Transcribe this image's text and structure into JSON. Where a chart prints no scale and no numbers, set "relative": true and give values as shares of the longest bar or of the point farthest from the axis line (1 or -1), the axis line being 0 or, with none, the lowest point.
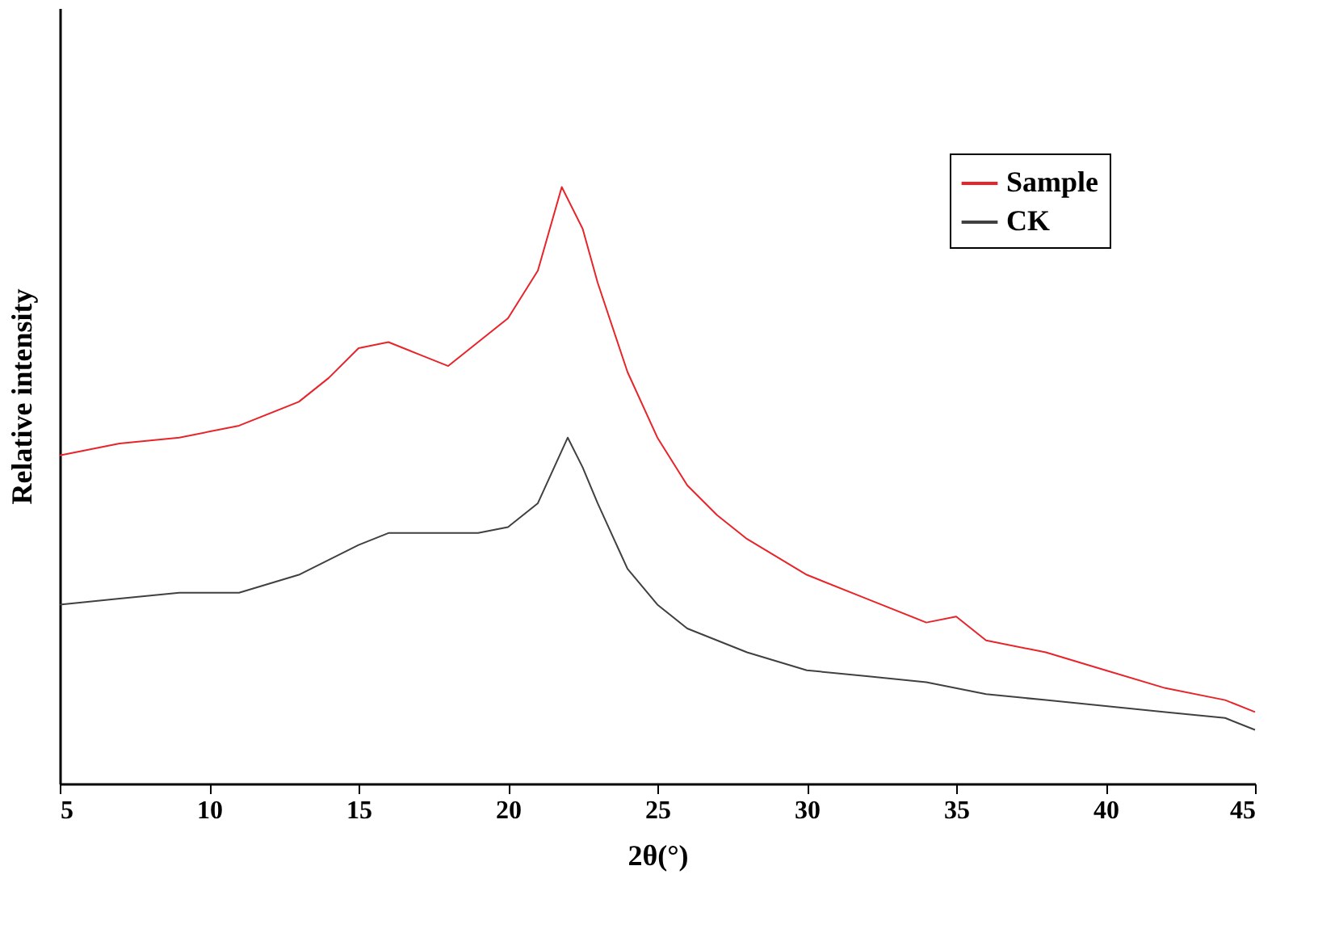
{
  "chart_data": {
    "type": "line",
    "relative": true,
    "xlabel": "2θ(°)",
    "ylabel": "Relative intensity",
    "xlim": [
      5,
      45
    ],
    "xticks": [
      5,
      10,
      15,
      20,
      25,
      30,
      35,
      40,
      45
    ],
    "grid": false,
    "legend": "top right",
    "line_style": "solid",
    "marker": "none",
    "series": [
      {
        "name": "Sample",
        "color": "#e8242a",
        "x": [
          5,
          7,
          9,
          11,
          13,
          14,
          15,
          16,
          17,
          18,
          19,
          20,
          21,
          21.8,
          22.5,
          23,
          24,
          25,
          26,
          27,
          28,
          30,
          32,
          34,
          35,
          36,
          38,
          40,
          42,
          44,
          45
        ],
        "values": [
          0.55,
          0.57,
          0.58,
          0.6,
          0.64,
          0.68,
          0.73,
          0.74,
          0.72,
          0.7,
          0.74,
          0.78,
          0.86,
          1,
          0.93,
          0.84,
          0.69,
          0.58,
          0.5,
          0.45,
          0.41,
          0.35,
          0.31,
          0.27,
          0.28,
          0.24,
          0.22,
          0.19,
          0.16,
          0.14,
          0.12
        ]
      },
      {
        "name": "CK",
        "color": "#404040",
        "x": [
          5,
          7,
          9,
          11,
          13,
          15,
          16,
          17,
          18,
          19,
          20,
          21,
          22,
          22.5,
          23,
          24,
          25,
          26,
          28,
          30,
          32,
          34,
          36,
          38,
          40,
          42,
          44,
          45
        ],
        "values": [
          0.3,
          0.31,
          0.32,
          0.32,
          0.35,
          0.4,
          0.42,
          0.42,
          0.42,
          0.42,
          0.43,
          0.47,
          0.58,
          0.53,
          0.47,
          0.36,
          0.3,
          0.26,
          0.22,
          0.19,
          0.18,
          0.17,
          0.15,
          0.14,
          0.13,
          0.12,
          0.11,
          0.09
        ]
      }
    ]
  }
}
